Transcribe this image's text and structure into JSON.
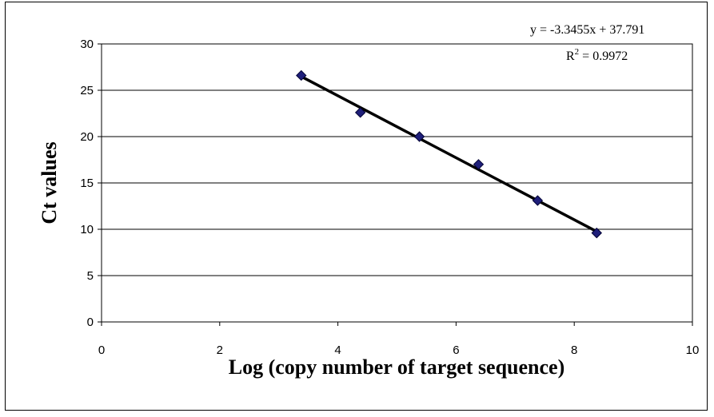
{
  "chart_data": {
    "type": "scatter",
    "title": "",
    "xlabel": "Log (copy number of target sequence)",
    "ylabel": "Ct values",
    "xlim": [
      0,
      10
    ],
    "ylim": [
      0,
      30
    ],
    "x_ticks": [
      0,
      2,
      4,
      6,
      8,
      10
    ],
    "y_ticks": [
      0,
      5,
      10,
      15,
      20,
      25,
      30
    ],
    "grid": "horizontal",
    "legend": "none",
    "series": [
      {
        "x": [
          3.38,
          4.38,
          5.38,
          6.38,
          7.38,
          8.38
        ],
        "y": [
          26.6,
          22.6,
          20.0,
          17.0,
          13.1,
          9.6
        ],
        "marker": "diamond",
        "color": "#1f1f7a"
      }
    ],
    "trendline": {
      "slope": -3.3455,
      "intercept": 37.791,
      "x_range": [
        3.38,
        8.38
      ],
      "color": "#000000",
      "equation": "y = -3.3455x + 37.791",
      "r2_label": "R",
      "r2_sup": "2",
      "r2_value": " = 0.9972"
    }
  }
}
